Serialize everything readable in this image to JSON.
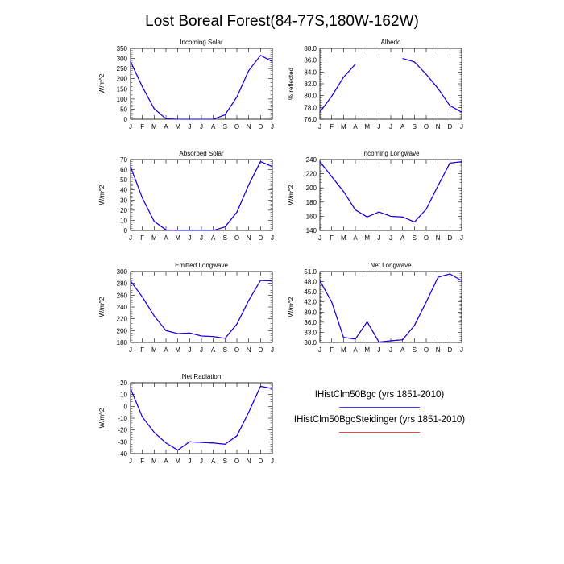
{
  "figure": {
    "title": "Lost Boreal Forest(84-77S,180W-162W)"
  },
  "chart_data": [
    {
      "type": "line",
      "title": "Incoming Solar",
      "ylabel": "W/m^2",
      "x": [
        "J",
        "F",
        "M",
        "A",
        "M",
        "J",
        "J",
        "A",
        "S",
        "O",
        "N",
        "D",
        "J"
      ],
      "ylim": [
        0,
        350
      ],
      "yticks": [
        0,
        50,
        100,
        150,
        200,
        250,
        300,
        350
      ],
      "ytick_labels": [
        "0",
        "50",
        "100",
        "150",
        "200",
        "250",
        "300",
        "350"
      ],
      "series": [
        {
          "name": "IHistClm50Bgc (yrs 1851-2010)",
          "color": "#0000ff",
          "values": [
            285,
            160,
            52,
            2,
            0,
            0,
            0,
            0,
            22,
            110,
            240,
            315,
            285
          ]
        },
        {
          "name": "IHistClm50BgcSteidinger (yrs 1851-2010)",
          "color": "#ff0000",
          "values": [
            285,
            160,
            52,
            2,
            0,
            0,
            0,
            0,
            22,
            110,
            240,
            315,
            285
          ]
        }
      ]
    },
    {
      "type": "line",
      "title": "Albedo",
      "ylabel": "% reflected",
      "x": [
        "J",
        "F",
        "M",
        "A",
        "M",
        "J",
        "J",
        "A",
        "S",
        "O",
        "N",
        "D",
        "J"
      ],
      "ylim": [
        76,
        88
      ],
      "yticks": [
        76,
        78,
        80,
        82,
        84,
        86,
        88
      ],
      "ytick_labels": [
        "76.0",
        "78.0",
        "80.0",
        "82.0",
        "84.0",
        "86.0",
        "88.0"
      ],
      "series": [
        {
          "name": "IHistClm50Bgc (yrs 1851-2010)",
          "color": "#0000ff",
          "values": [
            77.2,
            79.9,
            83.1,
            85.3,
            null,
            null,
            null,
            86.3,
            85.7,
            83.6,
            81.2,
            78.3,
            77.2
          ]
        },
        {
          "name": "IHistClm50BgcSteidinger (yrs 1851-2010)",
          "color": "#ff0000",
          "values": [
            77.2,
            79.9,
            83.1,
            85.3,
            null,
            null,
            null,
            86.3,
            85.7,
            83.6,
            81.2,
            78.3,
            77.2
          ]
        }
      ]
    },
    {
      "type": "line",
      "title": "Absorbed Solar",
      "ylabel": "W/m^2",
      "x": [
        "J",
        "F",
        "M",
        "A",
        "M",
        "J",
        "J",
        "A",
        "S",
        "O",
        "N",
        "D",
        "J"
      ],
      "ylim": [
        0,
        70
      ],
      "yticks": [
        0,
        10,
        20,
        30,
        40,
        50,
        60,
        70
      ],
      "ytick_labels": [
        "0",
        "10",
        "20",
        "30",
        "40",
        "50",
        "60",
        "70"
      ],
      "series": [
        {
          "name": "IHistClm50Bgc (yrs 1851-2010)",
          "color": "#0000ff",
          "values": [
            63,
            32,
            9,
            0.5,
            0,
            0,
            0,
            0,
            3.5,
            18,
            45,
            68,
            63
          ]
        },
        {
          "name": "IHistClm50BgcSteidinger (yrs 1851-2010)",
          "color": "#ff0000",
          "values": [
            63,
            32,
            9,
            0.5,
            0,
            0,
            0,
            0,
            3.5,
            18,
            45,
            68,
            63
          ]
        }
      ]
    },
    {
      "type": "line",
      "title": "Incoming Longwave",
      "ylabel": "W/m^2",
      "x": [
        "J",
        "F",
        "M",
        "A",
        "M",
        "J",
        "J",
        "A",
        "S",
        "O",
        "N",
        "D",
        "J"
      ],
      "ylim": [
        140,
        240
      ],
      "yticks": [
        140,
        160,
        180,
        200,
        220,
        240
      ],
      "ytick_labels": [
        "140",
        "160",
        "180",
        "200",
        "220",
        "240"
      ],
      "series": [
        {
          "name": "IHistClm50Bgc (yrs 1851-2010)",
          "color": "#0000ff",
          "values": [
            237,
            216,
            195,
            169,
            159,
            166,
            160,
            159,
            152,
            170,
            203,
            235,
            237
          ]
        },
        {
          "name": "IHistClm50BgcSteidinger (yrs 1851-2010)",
          "color": "#ff0000",
          "values": [
            237,
            216,
            195,
            169,
            159,
            166,
            160,
            159,
            152,
            170,
            203,
            235,
            237
          ]
        }
      ]
    },
    {
      "type": "line",
      "title": "Emitted Longwave",
      "ylabel": "W/m^2",
      "x": [
        "J",
        "F",
        "M",
        "A",
        "M",
        "J",
        "J",
        "A",
        "S",
        "O",
        "N",
        "D",
        "J"
      ],
      "ylim": [
        180,
        300
      ],
      "yticks": [
        180,
        200,
        220,
        240,
        260,
        280,
        300
      ],
      "ytick_labels": [
        "180",
        "200",
        "220",
        "240",
        "260",
        "280",
        "300"
      ],
      "series": [
        {
          "name": "IHistClm50Bgc (yrs 1851-2010)",
          "color": "#0000ff",
          "values": [
            284,
            257,
            225,
            200,
            195,
            196,
            191,
            190,
            187,
            211,
            251,
            285,
            284
          ]
        },
        {
          "name": "IHistClm50BgcSteidinger (yrs 1851-2010)",
          "color": "#ff0000",
          "values": [
            284,
            257,
            225,
            200,
            195,
            196,
            191,
            190,
            187,
            211,
            251,
            285,
            284
          ]
        }
      ]
    },
    {
      "type": "line",
      "title": "Net Longwave",
      "ylabel": "W/m^2",
      "x": [
        "J",
        "F",
        "M",
        "A",
        "M",
        "J",
        "J",
        "A",
        "S",
        "O",
        "N",
        "D",
        "J"
      ],
      "ylim": [
        30,
        51
      ],
      "yticks": [
        30,
        33,
        36,
        39,
        42,
        45,
        48,
        51
      ],
      "ytick_labels": [
        "30.0",
        "33.0",
        "36.0",
        "39.0",
        "42.0",
        "45.0",
        "48.0",
        "51.0"
      ],
      "series": [
        {
          "name": "IHistClm50Bgc (yrs 1851-2010)",
          "color": "#0000ff",
          "values": [
            48.3,
            42.0,
            31.5,
            31.0,
            36.1,
            30.1,
            30.5,
            30.8,
            35.0,
            42.0,
            49.3,
            50.3,
            48.3
          ]
        },
        {
          "name": "IHistClm50BgcSteidinger (yrs 1851-2010)",
          "color": "#ff0000",
          "values": [
            48.3,
            42.0,
            31.5,
            31.0,
            36.1,
            30.1,
            30.5,
            30.8,
            35.0,
            42.0,
            49.3,
            50.3,
            48.3
          ]
        }
      ]
    },
    {
      "type": "line",
      "title": "Net Radiation",
      "ylabel": "W/m^2",
      "x": [
        "J",
        "F",
        "M",
        "A",
        "M",
        "J",
        "J",
        "A",
        "S",
        "O",
        "N",
        "D",
        "J"
      ],
      "ylim": [
        -40,
        20
      ],
      "yticks": [
        -40,
        -30,
        -20,
        -10,
        0,
        10,
        20
      ],
      "ytick_labels": [
        "-40",
        "-30",
        "-20",
        "-10",
        "0",
        "10",
        "20"
      ],
      "series": [
        {
          "name": "IHistClm50Bgc (yrs 1851-2010)",
          "color": "#0000ff",
          "values": [
            15,
            -9,
            -22,
            -31,
            -37,
            -30,
            -30.5,
            -31,
            -32,
            -25,
            -5,
            17,
            15
          ]
        },
        {
          "name": "IHistClm50BgcSteidinger (yrs 1851-2010)",
          "color": "#ff0000",
          "values": [
            15,
            -9,
            -22,
            -31,
            -37,
            -30,
            -30.5,
            -31,
            -32,
            -25,
            -5,
            17,
            15
          ]
        }
      ]
    }
  ],
  "legend": {
    "entries": [
      {
        "label": "IHistClm50Bgc (yrs 1851-2010)",
        "color": "#0000ff"
      },
      {
        "label": "IHistClm50BgcSteidinger (yrs 1851-2010)",
        "color": "#ff0000"
      }
    ]
  }
}
